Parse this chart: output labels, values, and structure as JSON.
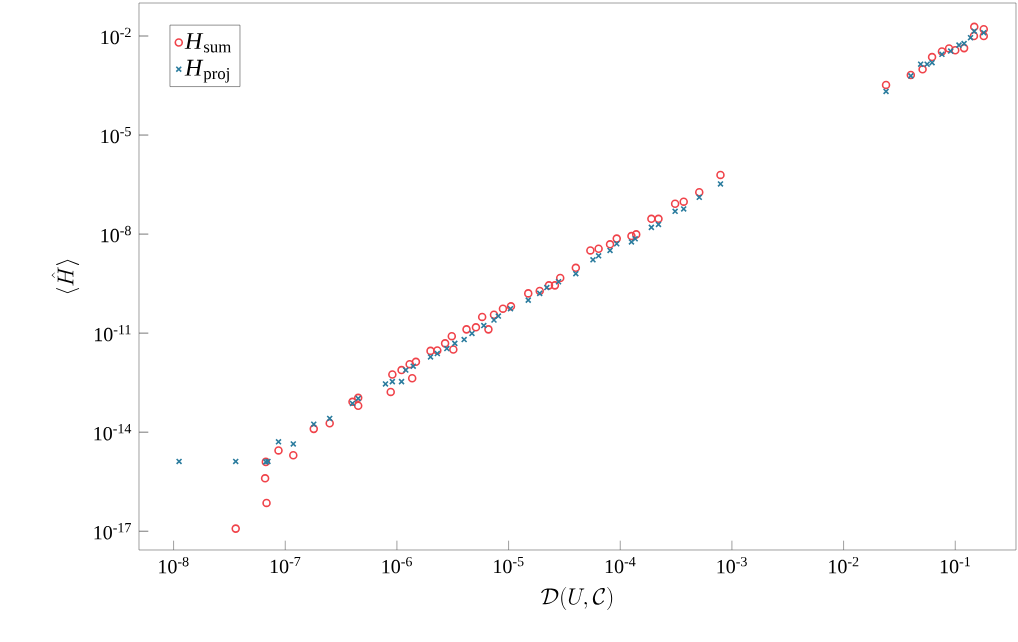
{
  "chart_data": {
    "type": "scatter",
    "xlabel": "\\mathcal{D}(U,\\mathcal{C})",
    "ylabel": "\\langle \\hat{H} \\rangle",
    "log": "xy",
    "xlim": [
      4.9e-09,
      0.35
    ],
    "ylim": [
      2.7e-18,
      0.1
    ],
    "xticks": [
      {
        "value": 1e-08,
        "label": "10$^{-8}$"
      },
      {
        "value": 1e-07,
        "label": "10$^{-7}$"
      },
      {
        "value": 1e-06,
        "label": "10$^{-6}$"
      },
      {
        "value": 1e-05,
        "label": "10$^{-5}$"
      },
      {
        "value": 0.0001,
        "label": "10$^{-4}$"
      },
      {
        "value": 0.001,
        "label": "10$^{-3}$"
      },
      {
        "value": 0.01,
        "label": "10$^{-2}$"
      },
      {
        "value": 0.1,
        "label": "10$^{-1}$"
      }
    ],
    "yticks": [
      {
        "value": 1e-17,
        "label": "10$^{-17}$"
      },
      {
        "value": 1e-14,
        "label": "10$^{-14}$"
      },
      {
        "value": 1e-11,
        "label": "10$^{-11}$"
      },
      {
        "value": 1e-08,
        "label": "10$^{-8}$"
      },
      {
        "value": 1e-05,
        "label": "10$^{-5}$"
      },
      {
        "value": 0.01,
        "label": "10$^{-2}$"
      }
    ],
    "legend": "top left",
    "series": [
      {
        "name": "*H*$_{sum}$",
        "color": "#f0434a",
        "marker": "circle",
        "x": [
          3.6e-08,
          6.8e-08,
          6.6e-08,
          6.7e-08,
          8.7e-08,
          1.18e-07,
          1.8e-07,
          2.5e-07,
          4e-07,
          4.5e-07,
          4.5e-07,
          8.8e-07,
          9.1e-07,
          1.1e-06,
          1.37e-06,
          1.48e-06,
          1.3e-06,
          2e-06,
          2.3e-06,
          2.7e-06,
          3.2e-06,
          3.1e-06,
          4.2e-06,
          5.1e-06,
          5.8e-06,
          6.6e-06,
          7.4e-06,
          8.9e-06,
          1.05e-05,
          1.5e-05,
          1.9e-05,
          2.3e-05,
          2.6e-05,
          2.9e-05,
          4e-05,
          5.4e-05,
          6.4e-05,
          8.1e-05,
          9.3e-05,
          0.000126,
          0.000139,
          0.00019,
          0.00022,
          0.00031,
          0.00037,
          0.00051,
          0.00079,
          0.024,
          0.04,
          0.051,
          0.062,
          0.076,
          0.088,
          0.1,
          0.12,
          0.147,
          0.148,
          0.18,
          0.18
        ],
        "values": [
          1.2e-17,
          7.2e-17,
          4e-16,
          1.26e-15,
          2.8e-15,
          2e-15,
          1.26e-14,
          1.86e-14,
          8.3e-14,
          1.1e-13,
          6.3e-14,
          1.66e-13,
          5.6e-13,
          7.6e-13,
          4.3e-13,
          1.35e-12,
          1.15e-12,
          2.9e-12,
          3e-12,
          4.9e-12,
          3.2e-12,
          8.1e-12,
          1.3e-11,
          1.5e-11,
          3.1e-11,
          1.3e-11,
          3.6e-11,
          5.5e-11,
          6.5e-11,
          1.6e-10,
          1.9e-10,
          2.8e-10,
          2.8e-10,
          4.7e-10,
          9.5e-10,
          3.2e-09,
          3.6e-09,
          4.9e-09,
          7.3e-09,
          8.7e-09,
          9.8e-09,
          2.9e-08,
          2.9e-08,
          8.3e-08,
          9.6e-08,
          1.85e-07,
          6.2e-07,
          0.00033,
          0.00066,
          0.00098,
          0.0023,
          0.0034,
          0.0042,
          0.0037,
          0.0043,
          0.01,
          0.019,
          0.016,
          0.01
        ]
      },
      {
        "name": "*H*$_{proj}$",
        "color": "#2b7c9e",
        "marker": "cross",
        "x": [
          1.12e-08,
          3.6e-08,
          6.7e-08,
          7e-08,
          8.7e-08,
          1.18e-07,
          1.8e-07,
          2.5e-07,
          4e-07,
          4.5e-07,
          7.9e-07,
          9.1e-07,
          1.1e-06,
          1.2e-06,
          1.4e-06,
          2e-06,
          2.3e-06,
          2.8e-06,
          3.3e-06,
          4e-06,
          4.7e-06,
          6e-06,
          7.4e-06,
          8.1e-06,
          1.04e-05,
          1.5e-05,
          1.9e-05,
          2.2e-05,
          2.8e-05,
          4e-05,
          5.7e-05,
          6.4e-05,
          8.1e-05,
          9.3e-05,
          0.000126,
          0.000136,
          0.00019,
          0.00022,
          0.00031,
          0.00037,
          0.00051,
          0.00079,
          0.024,
          0.04,
          0.049,
          0.056,
          0.062,
          0.076,
          0.091,
          0.108,
          0.12,
          0.137,
          0.148,
          0.18
        ],
        "values": [
          1.3e-15,
          1.3e-15,
          1.26e-15,
          1.3e-15,
          5.1e-15,
          4.4e-15,
          1.74e-14,
          2.6e-14,
          7.4e-14,
          1.05e-13,
          2.9e-13,
          3.4e-13,
          3.4e-13,
          7.6e-13,
          1e-12,
          1.9e-12,
          2.4e-12,
          3.4e-12,
          4.9e-12,
          6.4e-12,
          9.8e-12,
          1.7e-11,
          2.5e-11,
          3.3e-11,
          5.5e-11,
          1e-10,
          1.6e-10,
          2.4e-10,
          3.6e-10,
          6.3e-10,
          1.66e-09,
          2.2e-09,
          3.2e-09,
          5.1e-09,
          5.8e-09,
          7.2e-09,
          1.6e-08,
          1.96e-08,
          4.9e-08,
          5.8e-08,
          1.3e-07,
          3.3e-07,
          0.00021,
          0.00062,
          0.0014,
          0.0014,
          0.00156,
          0.0028,
          0.0035,
          0.0053,
          0.0059,
          0.0089,
          0.014,
          0.0126
        ]
      }
    ]
  }
}
